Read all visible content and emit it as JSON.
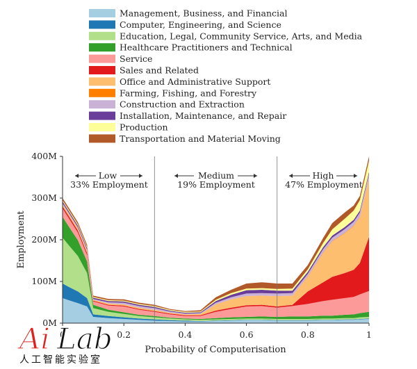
{
  "chart_data": {
    "type": "area",
    "title": "",
    "xlabel": "Probability of Computerisation",
    "ylabel": "Employment",
    "xlim": [
      0,
      1
    ],
    "ylim": [
      0,
      400
    ],
    "x_ticks": [
      {
        "value": 0,
        "label": "0"
      },
      {
        "value": 0.2,
        "label": "0.2"
      },
      {
        "value": 0.4,
        "label": "0.4"
      },
      {
        "value": 0.6,
        "label": "0.6"
      },
      {
        "value": 0.8,
        "label": "0.8"
      },
      {
        "value": 1,
        "label": "1"
      }
    ],
    "y_ticks": [
      {
        "value": 0,
        "label": "0M"
      },
      {
        "value": 100,
        "label": "100M"
      },
      {
        "value": 200,
        "label": "200M"
      },
      {
        "value": 300,
        "label": "300M"
      },
      {
        "value": 400,
        "label": "400M"
      }
    ],
    "legend_position": "top",
    "grid": false,
    "x": [
      0,
      0.02,
      0.05,
      0.08,
      0.1,
      0.15,
      0.2,
      0.25,
      0.3,
      0.35,
      0.4,
      0.45,
      0.5,
      0.55,
      0.6,
      0.65,
      0.7,
      0.75,
      0.8,
      0.85,
      0.88,
      0.92,
      0.95,
      0.97,
      1.0
    ],
    "series": [
      {
        "name": "Management, Business, and Financial",
        "color": "#a6cee3",
        "values": [
          60,
          55,
          48,
          40,
          15,
          12,
          10,
          8,
          6,
          5,
          4,
          4,
          5,
          6,
          7,
          7,
          6,
          6,
          6,
          7,
          7,
          8,
          8,
          9,
          10
        ]
      },
      {
        "name": "Computer, Engineering, and Science",
        "color": "#1f78b4",
        "values": [
          35,
          32,
          28,
          20,
          6,
          5,
          4,
          3,
          3,
          2,
          2,
          1,
          1,
          1,
          1,
          1,
          1,
          1,
          1,
          1,
          1,
          1,
          1,
          1,
          1
        ]
      },
      {
        "name": "Education, Legal, Community Service, Arts, and Media",
        "color": "#b2df8a",
        "values": [
          110,
          100,
          85,
          60,
          15,
          10,
          8,
          6,
          5,
          4,
          3,
          3,
          3,
          3,
          3,
          3,
          3,
          3,
          3,
          3,
          3,
          3,
          3,
          4,
          4
        ]
      },
      {
        "name": "Healthcare Practitioners and Technical",
        "color": "#33a02c",
        "values": [
          50,
          45,
          38,
          28,
          8,
          5,
          4,
          3,
          3,
          2,
          2,
          2,
          3,
          4,
          4,
          5,
          5,
          6,
          6,
          7,
          7,
          8,
          9,
          10,
          12
        ]
      },
      {
        "name": "Service",
        "color": "#fb9a99",
        "values": [
          20,
          20,
          18,
          15,
          8,
          10,
          14,
          12,
          10,
          8,
          6,
          7,
          15,
          20,
          25,
          25,
          22,
          25,
          30,
          35,
          38,
          40,
          42,
          45,
          50
        ]
      },
      {
        "name": "Sales and Related",
        "color": "#e31a1c",
        "values": [
          5,
          5,
          5,
          5,
          2,
          2,
          2,
          2,
          2,
          2,
          2,
          2,
          3,
          3,
          3,
          3,
          3,
          3,
          30,
          45,
          55,
          60,
          65,
          75,
          130
        ]
      },
      {
        "name": "Office and Administrative Support",
        "color": "#fdbf6f",
        "values": [
          5,
          5,
          5,
          5,
          2,
          3,
          3,
          3,
          3,
          2,
          2,
          3,
          15,
          20,
          22,
          22,
          25,
          22,
          35,
          70,
          85,
          95,
          105,
          110,
          140
        ]
      },
      {
        "name": "Farming, Fishing, and Forestry",
        "color": "#ff7f00",
        "values": [
          0,
          0,
          0,
          0,
          0,
          0,
          0,
          0,
          0,
          0,
          0,
          0,
          0,
          0,
          0,
          0,
          0,
          0,
          1,
          1,
          1,
          1,
          1,
          1,
          1
        ]
      },
      {
        "name": "Construction and Extraction",
        "color": "#cab2d6",
        "values": [
          3,
          3,
          3,
          3,
          2,
          3,
          4,
          4,
          4,
          3,
          2,
          2,
          4,
          5,
          6,
          6,
          6,
          6,
          6,
          8,
          8,
          9,
          9,
          10,
          10
        ]
      },
      {
        "name": "Installation, Maintenance, and Repair",
        "color": "#6a3d9a",
        "values": [
          4,
          4,
          4,
          4,
          3,
          3,
          3,
          3,
          3,
          2,
          2,
          2,
          4,
          6,
          8,
          8,
          7,
          6,
          5,
          5,
          5,
          5,
          5,
          5,
          5
        ]
      },
      {
        "name": "Production",
        "color": "#ffff99",
        "values": [
          3,
          3,
          3,
          3,
          2,
          2,
          2,
          2,
          2,
          2,
          2,
          2,
          3,
          4,
          4,
          4,
          4,
          5,
          6,
          10,
          15,
          20,
          22,
          25,
          27
        ]
      },
      {
        "name": "Transportation and Material Moving",
        "color": "#b15928",
        "values": [
          5,
          5,
          5,
          5,
          3,
          3,
          3,
          3,
          3,
          2,
          2,
          3,
          6,
          8,
          12,
          14,
          13,
          12,
          10,
          12,
          15,
          15,
          12,
          10,
          10
        ]
      }
    ],
    "regions": [
      {
        "name": "Low",
        "share": "33% Employment",
        "range": [
          0,
          0.3
        ]
      },
      {
        "name": "Medium",
        "share": "19% Employment",
        "range": [
          0.3,
          0.7
        ]
      },
      {
        "name": "High",
        "share": "47% Employment",
        "range": [
          0.7,
          1.0
        ]
      }
    ],
    "boundaries": [
      0.3,
      0.7
    ]
  },
  "regions_text": {
    "low": "Low",
    "low_share": "33% Employment",
    "medium": "Medium",
    "medium_share": "19% Employment",
    "high": "High",
    "high_share": "47% Employment"
  },
  "watermark": {
    "logo": "AiLab",
    "tagline": "人工智能实验室"
  }
}
